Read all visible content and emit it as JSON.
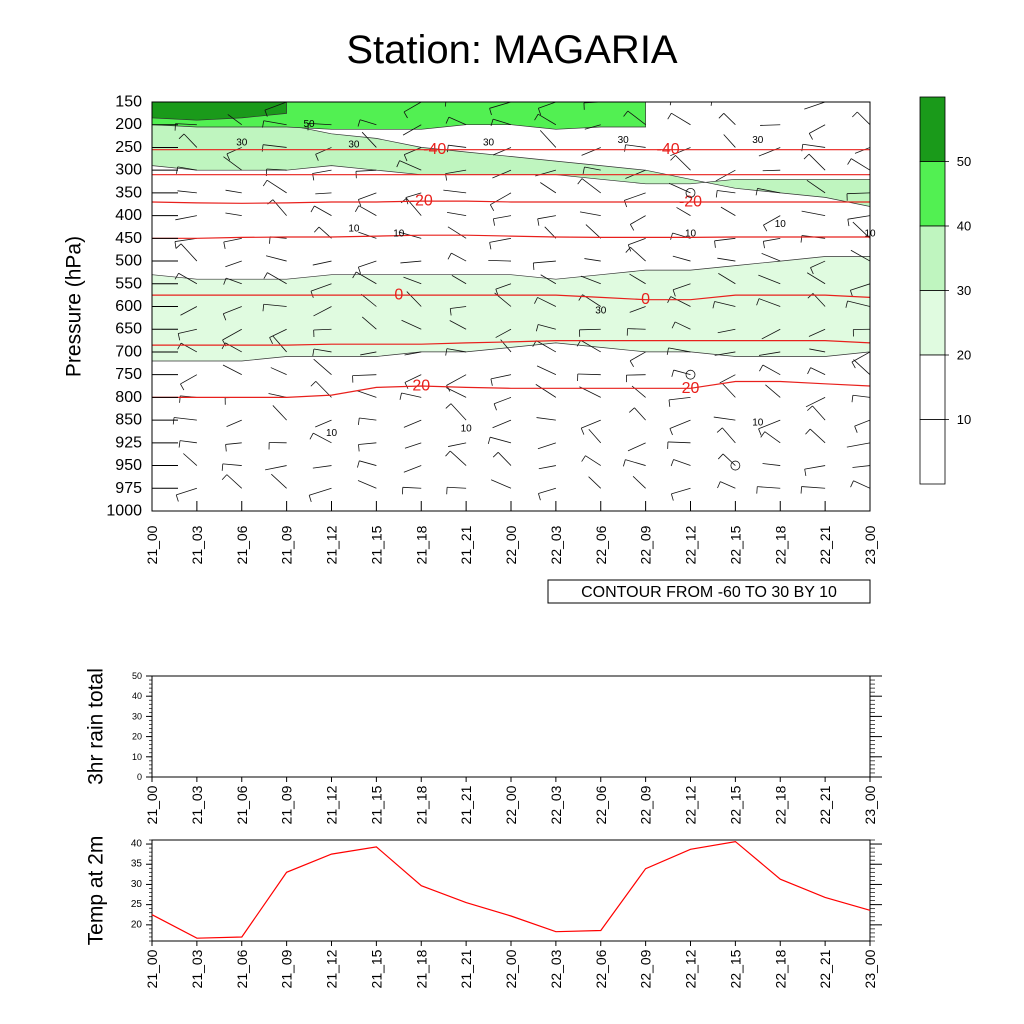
{
  "title": "Station: MAGARIA",
  "time_labels": [
    "21_00",
    "21_03",
    "21_06",
    "21_09",
    "21_12",
    "21_15",
    "21_18",
    "21_21",
    "22_00",
    "22_03",
    "22_06",
    "22_09",
    "22_12",
    "22_15",
    "22_18",
    "22_21",
    "23_00"
  ],
  "colors": {
    "shade_50": "#1a9a1a",
    "shade_40": "#52f052",
    "shade_30": "#bff5bf",
    "shade_20": "#e0fbe0",
    "shade_10": "#ffffff",
    "temp_contour": "#e8201c",
    "temp_line": "#ff0000"
  },
  "chart_data": [
    {
      "type": "contour-cross-section",
      "title": "Station: MAGARIA",
      "ylabel": "Pressure (hPa)",
      "y_levels": [
        150,
        200,
        250,
        300,
        350,
        400,
        450,
        500,
        550,
        600,
        650,
        700,
        750,
        800,
        850,
        925,
        950,
        975,
        1000
      ],
      "ylim": [
        1000,
        150
      ],
      "x_categories": [
        "21_00",
        "21_03",
        "21_06",
        "21_09",
        "21_12",
        "21_15",
        "21_18",
        "21_21",
        "22_00",
        "22_03",
        "22_06",
        "22_09",
        "22_12",
        "22_15",
        "22_18",
        "22_21",
        "23_00"
      ],
      "info_label": "CONTOUR FROM -60 TO 30 BY 10",
      "colorbar": {
        "levels": [
          10,
          20,
          30,
          40,
          50
        ],
        "labels": [
          "10",
          "20",
          "30",
          "40",
          "50"
        ]
      },
      "wind_speed_shading_bands": [
        {
          "level": 30,
          "top_p": [
            150,
            160,
            170,
            200,
            220,
            230,
            250,
            260,
            270,
            280,
            290,
            300,
            320,
            340,
            350,
            360,
            380
          ],
          "bottom_p": [
            290,
            300,
            300,
            300,
            290,
            300,
            310,
            310,
            310,
            310,
            320,
            330,
            330,
            320,
            320,
            320,
            320
          ]
        },
        {
          "level": 20,
          "top_p": [
            530,
            540,
            540,
            540,
            530,
            530,
            530,
            530,
            530,
            540,
            530,
            520,
            520,
            510,
            500,
            490,
            490
          ],
          "bottom_p": [
            720,
            720,
            720,
            710,
            710,
            710,
            700,
            700,
            690,
            680,
            690,
            700,
            700,
            710,
            710,
            710,
            700
          ]
        },
        {
          "level": 40,
          "top_p": [
            150,
            150,
            150,
            150,
            150,
            150,
            150,
            150,
            150,
            150,
            150,
            150
          ],
          "bottom_p": [
            200,
            205,
            205,
            205,
            210,
            210,
            210,
            200,
            200,
            210,
            205,
            205
          ]
        },
        {
          "level": 50,
          "top_p": [
            150,
            150,
            150,
            150
          ],
          "bottom_p": [
            185,
            190,
            185,
            175
          ]
        }
      ],
      "temperature_contours": [
        {
          "value": -40,
          "p": [
            255,
            255,
            255,
            255,
            255,
            255,
            255,
            255,
            255,
            255,
            255,
            255,
            255,
            255,
            255,
            255,
            255
          ],
          "labels": [
            {
              "text": "-40",
              "x_index": 6.3
            },
            {
              "text": "-40",
              "x_index": 11.5
            }
          ]
        },
        {
          "value": -30,
          "p": [
            310,
            310,
            310,
            310,
            310,
            310,
            310,
            310,
            310,
            310,
            310,
            310,
            310,
            310,
            310,
            310,
            310
          ],
          "labels": []
        },
        {
          "value": -20,
          "p": [
            370,
            372,
            373,
            372,
            370,
            370,
            368,
            368,
            370,
            370,
            370,
            370,
            370,
            370,
            370,
            370,
            370
          ],
          "labels": [
            {
              "text": "-20",
              "x_index": 6.0
            },
            {
              "text": "-20",
              "x_index": 12.0
            }
          ]
        },
        {
          "value": -10,
          "p": [
            450,
            450,
            448,
            447,
            447,
            445,
            443,
            443,
            445,
            447,
            448,
            448,
            448,
            447,
            447,
            447,
            447
          ],
          "labels": []
        },
        {
          "value": 0,
          "p": [
            575,
            575,
            575,
            575,
            575,
            575,
            575,
            575,
            575,
            575,
            580,
            585,
            585,
            575,
            575,
            575,
            580
          ],
          "labels": [
            {
              "text": "0",
              "x_index": 5.5
            },
            {
              "text": "0",
              "x_index": 11.0
            }
          ]
        },
        {
          "value": 10,
          "p": [
            685,
            685,
            685,
            685,
            683,
            683,
            683,
            680,
            678,
            675,
            675,
            675,
            675,
            675,
            675,
            675,
            680
          ],
          "labels": []
        },
        {
          "value": 20,
          "p": [
            800,
            800,
            800,
            800,
            795,
            778,
            775,
            778,
            780,
            780,
            780,
            780,
            780,
            765,
            765,
            770,
            775
          ],
          "labels": [
            {
              "text": "20",
              "x_index": 6.0
            },
            {
              "text": "20",
              "x_index": 12.0
            }
          ]
        }
      ],
      "speed_contour_labels": [
        {
          "text": "50",
          "x_index": 3.5,
          "p": 200
        },
        {
          "text": "30",
          "x_index": 2.0,
          "p": 240
        },
        {
          "text": "30",
          "x_index": 4.5,
          "p": 245
        },
        {
          "text": "30",
          "x_index": 7.5,
          "p": 240
        },
        {
          "text": "30",
          "x_index": 10.5,
          "p": 235
        },
        {
          "text": "30",
          "x_index": 13.5,
          "p": 235
        },
        {
          "text": "30",
          "x_index": 10.0,
          "p": 610
        },
        {
          "text": "10",
          "x_index": 4.5,
          "p": 430
        },
        {
          "text": "10",
          "x_index": 5.5,
          "p": 440
        },
        {
          "text": "10",
          "x_index": 12.0,
          "p": 440
        },
        {
          "text": "10",
          "x_index": 14.0,
          "p": 420
        },
        {
          "text": "10",
          "x_index": 16.0,
          "p": 440
        },
        {
          "text": "10",
          "x_index": 7.0,
          "p": 880
        },
        {
          "text": "10",
          "x_index": 4.0,
          "p": 895
        },
        {
          "text": "10",
          "x_index": 13.5,
          "p": 860
        }
      ],
      "calm_points": [
        {
          "x_index": 12.0,
          "p": 350
        },
        {
          "x_index": 12.0,
          "p": 750
        },
        {
          "x_index": 13.0,
          "p": 950
        }
      ]
    },
    {
      "type": "line",
      "ylabel": "3hr rain total",
      "ylim": [
        0,
        50
      ],
      "y_ticks": [
        0,
        10,
        20,
        30,
        40,
        50
      ],
      "x_categories": [
        "21_00",
        "21_03",
        "21_06",
        "21_09",
        "21_12",
        "21_15",
        "21_18",
        "21_21",
        "22_00",
        "22_03",
        "22_06",
        "22_09",
        "22_12",
        "22_15",
        "22_18",
        "22_21",
        "23_00"
      ],
      "values": []
    },
    {
      "type": "line",
      "ylabel": "Temp at 2m",
      "ylim": [
        16,
        41
      ],
      "y_ticks": [
        20,
        25,
        30,
        35,
        40
      ],
      "x_categories": [
        "21_00",
        "21_03",
        "21_06",
        "21_09",
        "21_12",
        "21_15",
        "21_18",
        "21_21",
        "22_00",
        "22_03",
        "22_06",
        "22_09",
        "22_12",
        "22_15",
        "22_18",
        "22_21",
        "23_00"
      ],
      "values": [
        22.5,
        16.7,
        17.0,
        33.0,
        37.5,
        39.3,
        29.7,
        25.5,
        22.2,
        18.3,
        18.6,
        33.9,
        38.7,
        40.6,
        31.3,
        26.8,
        23.6
      ]
    }
  ]
}
